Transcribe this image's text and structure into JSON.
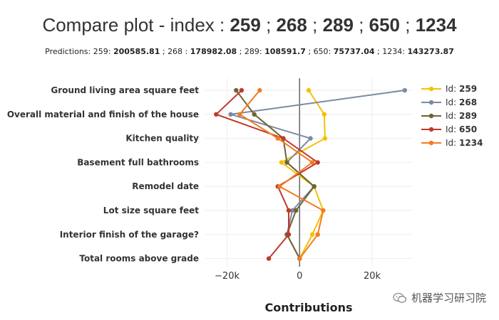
{
  "title": {
    "prefix": "Compare plot - index : ",
    "ids": [
      "259",
      "268",
      "289",
      "650",
      "1234"
    ],
    "sep": " ; "
  },
  "subtitle": {
    "prefix": "Predictions: ",
    "items": [
      {
        "id": "259",
        "value": "200585.81"
      },
      {
        "id": "268",
        "value": "178982.08"
      },
      {
        "id": "289",
        "value": "108591.7"
      },
      {
        "id": "650",
        "value": "75737.04"
      },
      {
        "id": "1234",
        "value": "143273.87"
      }
    ]
  },
  "watermark": "机器学习研习院",
  "chart_data": {
    "type": "line",
    "xlabel": "Contributions",
    "ylabel": "",
    "xlim": [
      -26000,
      31000
    ],
    "xticks": [
      -20000,
      0,
      20000
    ],
    "xtick_labels": [
      "−20k",
      "0",
      "20k"
    ],
    "grid": true,
    "legend_position": "right",
    "categories": [
      "Ground living area square feet",
      "Overall material and finish of the house",
      "Kitchen quality",
      "Basement full bathrooms",
      "Remodel date",
      "Lot size square feet",
      "Interior finish of the garage?",
      "Total rooms above grade"
    ],
    "series": [
      {
        "name": "259",
        "legend_prefix": "Id: ",
        "color": "#f2c200",
        "values": [
          2500,
          6800,
          7000,
          -5000,
          4000,
          6500,
          3500,
          0
        ]
      },
      {
        "name": "268",
        "legend_prefix": "Id: ",
        "color": "#7b8aa3",
        "values": [
          29000,
          -19000,
          3000,
          -3500,
          4000,
          -2000,
          -3500,
          0
        ]
      },
      {
        "name": "289",
        "legend_prefix": "Id: ",
        "color": "#6e6330",
        "values": [
          -17500,
          -12500,
          -4500,
          -3500,
          4000,
          -1000,
          -3500,
          0
        ]
      },
      {
        "name": "650",
        "legend_prefix": "Id: ",
        "color": "#c0392b",
        "values": [
          -16000,
          -23000,
          -4500,
          5000,
          -6000,
          -3000,
          -3000,
          -8500
        ]
      },
      {
        "name": "1234",
        "legend_prefix": "Id: ",
        "color": "#f47b20",
        "values": [
          -11000,
          -16500,
          -6000,
          3500,
          -5500,
          6500,
          5000,
          0
        ]
      }
    ]
  }
}
